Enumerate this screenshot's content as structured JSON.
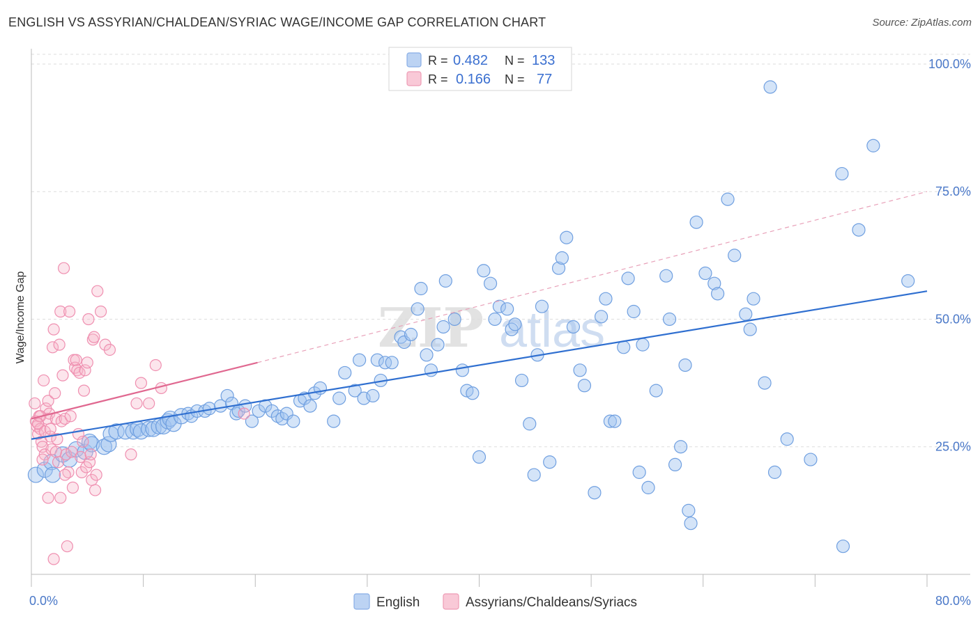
{
  "header": {
    "title": "ENGLISH VS ASSYRIAN/CHALDEAN/SYRIAC WAGE/INCOME GAP CORRELATION CHART",
    "source": "Source: ZipAtlas.com"
  },
  "legend": {
    "r_label": "R =",
    "n_label": "N =",
    "rows": [
      {
        "name": "English",
        "r": "0.482",
        "n": "133",
        "color": "#a9c6ef"
      },
      {
        "name": "Assyrians/Chaldeans/Syriacs",
        "r": "0.166",
        "n": "77",
        "color": "#f4b6c8"
      }
    ]
  },
  "watermark": {
    "zip": "ZIP",
    "atlas": "atlas"
  },
  "chart_data": {
    "type": "scatter",
    "title": "ENGLISH VS ASSYRIAN/CHALDEAN/SYRIAC WAGE/INCOME GAP CORRELATION CHART",
    "xlabel": "",
    "ylabel": "Wage/Income Gap",
    "xlim": [
      0,
      80
    ],
    "ylim": [
      0,
      103
    ],
    "x_tick_labels": [
      "0.0%",
      "80.0%"
    ],
    "y_ticks": [
      25,
      50,
      75,
      100
    ],
    "y_tick_labels": [
      "25.0%",
      "50.0%",
      "75.0%",
      "100.0%"
    ],
    "grid": true,
    "legend_position": "top-center",
    "series": [
      {
        "name": "English",
        "color": "#6f9fe0",
        "trend": {
          "x": [
            0,
            80
          ],
          "y": [
            26.5,
            55.5
          ],
          "color": "#2f6fd0"
        },
        "points": [
          [
            0.4,
            19.5
          ],
          [
            1.2,
            20.5
          ],
          [
            1.8,
            22
          ],
          [
            1.9,
            19.5
          ],
          [
            2.8,
            23.5
          ],
          [
            3.4,
            22.5
          ],
          [
            4.0,
            24.5
          ],
          [
            4.8,
            24
          ],
          [
            5.2,
            26
          ],
          [
            5.4,
            25.5
          ],
          [
            6.5,
            25
          ],
          [
            6.9,
            25.5
          ],
          [
            7.1,
            27.5
          ],
          [
            7.6,
            28
          ],
          [
            8.4,
            28
          ],
          [
            9.1,
            28
          ],
          [
            9.5,
            28.5
          ],
          [
            9.8,
            28
          ],
          [
            10.5,
            28.5
          ],
          [
            10.9,
            28.5
          ],
          [
            11.4,
            29
          ],
          [
            11.8,
            29
          ],
          [
            12.2,
            30
          ],
          [
            12.4,
            30.5
          ],
          [
            12.7,
            29.5
          ],
          [
            13.4,
            31
          ],
          [
            14.0,
            31.5
          ],
          [
            14.3,
            31
          ],
          [
            14.8,
            32
          ],
          [
            15.5,
            32
          ],
          [
            15.9,
            32.5
          ],
          [
            16.9,
            33
          ],
          [
            17.5,
            35
          ],
          [
            17.9,
            33.5
          ],
          [
            18.3,
            31.5
          ],
          [
            18.5,
            32
          ],
          [
            19.1,
            33
          ],
          [
            19.7,
            30
          ],
          [
            20.3,
            32
          ],
          [
            20.9,
            33
          ],
          [
            21.5,
            32
          ],
          [
            22.0,
            31
          ],
          [
            22.4,
            30.5
          ],
          [
            22.8,
            31.5
          ],
          [
            23.4,
            30
          ],
          [
            24.0,
            34
          ],
          [
            24.4,
            34.5
          ],
          [
            24.9,
            33
          ],
          [
            25.3,
            35.5
          ],
          [
            25.8,
            36.5
          ],
          [
            27.0,
            30
          ],
          [
            27.5,
            34.5
          ],
          [
            28.0,
            39.5
          ],
          [
            28.9,
            36
          ],
          [
            29.3,
            42
          ],
          [
            29.7,
            34.5
          ],
          [
            30.5,
            35
          ],
          [
            30.9,
            42
          ],
          [
            31.2,
            38
          ],
          [
            31.6,
            41.5
          ],
          [
            32.2,
            41.5
          ],
          [
            33.0,
            46.5
          ],
          [
            33.3,
            45.5
          ],
          [
            33.9,
            47
          ],
          [
            34.5,
            52
          ],
          [
            34.8,
            56
          ],
          [
            35.3,
            43
          ],
          [
            35.7,
            40
          ],
          [
            36.3,
            45
          ],
          [
            36.8,
            48.5
          ],
          [
            37.0,
            57.5
          ],
          [
            37.8,
            50
          ],
          [
            38.5,
            40
          ],
          [
            38.9,
            36
          ],
          [
            39.4,
            35.5
          ],
          [
            40.0,
            23
          ],
          [
            40.4,
            59.5
          ],
          [
            41.0,
            57
          ],
          [
            41.4,
            50
          ],
          [
            41.8,
            52.5
          ],
          [
            42.5,
            52
          ],
          [
            42.9,
            48
          ],
          [
            43.2,
            49
          ],
          [
            43.8,
            38
          ],
          [
            44.5,
            29.5
          ],
          [
            44.9,
            19.5
          ],
          [
            45.2,
            43
          ],
          [
            45.6,
            52.5
          ],
          [
            46.3,
            22
          ],
          [
            47.1,
            60
          ],
          [
            47.4,
            62
          ],
          [
            47.8,
            66
          ],
          [
            48.4,
            48.5
          ],
          [
            49.0,
            40
          ],
          [
            49.4,
            37
          ],
          [
            50.3,
            16
          ],
          [
            50.9,
            50.5
          ],
          [
            51.3,
            54
          ],
          [
            51.7,
            30
          ],
          [
            52.1,
            30
          ],
          [
            52.9,
            44.5
          ],
          [
            53.3,
            58
          ],
          [
            53.8,
            51.5
          ],
          [
            54.3,
            20
          ],
          [
            54.6,
            45
          ],
          [
            55.1,
            17
          ],
          [
            55.8,
            36
          ],
          [
            56.7,
            58.5
          ],
          [
            57.0,
            50
          ],
          [
            57.5,
            21.5
          ],
          [
            58.0,
            25
          ],
          [
            58.4,
            41
          ],
          [
            58.7,
            12.5
          ],
          [
            58.9,
            10
          ],
          [
            59.4,
            69
          ],
          [
            60.2,
            59
          ],
          [
            61.0,
            57
          ],
          [
            61.3,
            55
          ],
          [
            62.2,
            73.5
          ],
          [
            62.8,
            62.5
          ],
          [
            63.8,
            51
          ],
          [
            64.2,
            48
          ],
          [
            64.5,
            54
          ],
          [
            65.5,
            37.5
          ],
          [
            66.4,
            20
          ],
          [
            67.5,
            26.5
          ],
          [
            69.6,
            22.5
          ],
          [
            72.4,
            78.5
          ],
          [
            72.5,
            5.5
          ],
          [
            73.9,
            67.5
          ],
          [
            75.2,
            84
          ],
          [
            78.3,
            57.5
          ],
          [
            66.0,
            95.5
          ]
        ]
      },
      {
        "name": "Assyrians/Chaldeans/Syriacs",
        "color": "#f08fb0",
        "trend": {
          "x": [
            0,
            20.2
          ],
          "y": [
            30.5,
            41.5
          ],
          "color": "#e06890"
        },
        "trend_extension": {
          "x": [
            20.2,
            80
          ],
          "y": [
            41.5,
            75
          ],
          "color": "#e8a0b8"
        },
        "points": [
          [
            0.3,
            33.5
          ],
          [
            0.4,
            30
          ],
          [
            0.5,
            29
          ],
          [
            0.6,
            27.5
          ],
          [
            0.7,
            31
          ],
          [
            0.8,
            28.5
          ],
          [
            0.9,
            26
          ],
          [
            1.0,
            25
          ],
          [
            1.1,
            38
          ],
          [
            1.2,
            23.5
          ],
          [
            1.3,
            32.5
          ],
          [
            1.4,
            30.5
          ],
          [
            1.5,
            34
          ],
          [
            1.6,
            31.5
          ],
          [
            1.7,
            27
          ],
          [
            1.8,
            24.5
          ],
          [
            1.9,
            44.5
          ],
          [
            2.0,
            48
          ],
          [
            2.1,
            35.5
          ],
          [
            2.2,
            30.5
          ],
          [
            2.3,
            26.5
          ],
          [
            2.4,
            22
          ],
          [
            2.5,
            45
          ],
          [
            2.6,
            51.5
          ],
          [
            2.7,
            30
          ],
          [
            2.8,
            39
          ],
          [
            2.9,
            60
          ],
          [
            3.0,
            30.5
          ],
          [
            3.1,
            23.5
          ],
          [
            3.2,
            5.5
          ],
          [
            3.3,
            20
          ],
          [
            3.4,
            51.5
          ],
          [
            3.5,
            31
          ],
          [
            3.6,
            24
          ],
          [
            3.7,
            17
          ],
          [
            3.8,
            42
          ],
          [
            3.9,
            40.5
          ],
          [
            4.0,
            42
          ],
          [
            4.1,
            40
          ],
          [
            4.2,
            27.5
          ],
          [
            4.3,
            39.5
          ],
          [
            4.4,
            23
          ],
          [
            4.5,
            20
          ],
          [
            4.6,
            26
          ],
          [
            4.7,
            36
          ],
          [
            4.8,
            40
          ],
          [
            4.9,
            21
          ],
          [
            5.0,
            41.5
          ],
          [
            5.1,
            50
          ],
          [
            5.2,
            22
          ],
          [
            5.3,
            23.5
          ],
          [
            5.4,
            18.5
          ],
          [
            5.5,
            46
          ],
          [
            5.6,
            46.5
          ],
          [
            5.7,
            16.5
          ],
          [
            5.8,
            19.5
          ],
          [
            5.9,
            55.5
          ],
          [
            6.2,
            51.5
          ],
          [
            6.6,
            45
          ],
          [
            7.0,
            44
          ],
          [
            8.9,
            23.5
          ],
          [
            9.4,
            33.5
          ],
          [
            9.8,
            37.5
          ],
          [
            10.5,
            33.5
          ],
          [
            11.1,
            41
          ],
          [
            11.6,
            36.5
          ],
          [
            19.0,
            31.5
          ],
          [
            1.0,
            22.5
          ],
          [
            1.5,
            15
          ],
          [
            2.0,
            3
          ],
          [
            0.8,
            31
          ],
          [
            0.6,
            29.5
          ],
          [
            1.2,
            28
          ],
          [
            1.7,
            28.5
          ],
          [
            2.2,
            24
          ],
          [
            2.6,
            15
          ],
          [
            3.0,
            19.5
          ]
        ]
      }
    ]
  }
}
